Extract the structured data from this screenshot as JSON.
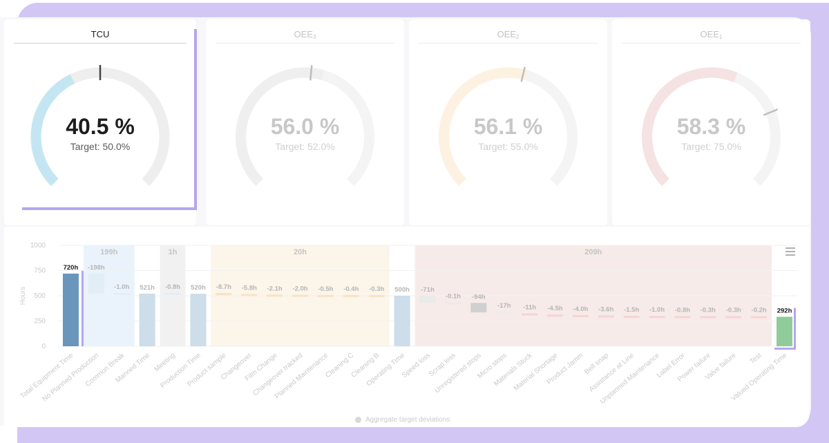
{
  "gauges": [
    {
      "title": "TCU",
      "sub": "",
      "value": "40.5 %",
      "target": "Target: 50.0%",
      "fraction": 0.405,
      "target_fraction": 0.5,
      "color": "#c4e6f3",
      "active": true
    },
    {
      "title": "OEE",
      "sub": "3",
      "value": "56.0 %",
      "target": "Target: 52.0%",
      "fraction": 0.56,
      "target_fraction": 0.52,
      "color": "#efefef",
      "active": false
    },
    {
      "title": "OEE",
      "sub": "2",
      "value": "56.1 %",
      "target": "Target: 55.0%",
      "fraction": 0.561,
      "target_fraction": 0.55,
      "color": "#fdf2e1",
      "active": false
    },
    {
      "title": "OEE",
      "sub": "1",
      "value": "58.3 %",
      "target": "Target: 75.0%",
      "fraction": 0.583,
      "target_fraction": 0.75,
      "color": "#f5e2e2",
      "active": false
    }
  ],
  "chart_data": {
    "type": "bar",
    "ylabel": "Hours",
    "ylim": [
      0,
      1000
    ],
    "yticks": [
      0,
      250,
      500,
      750,
      1000
    ],
    "categories": [
      "Total Equipment Time",
      "No Planned Production",
      "Common Break",
      "Manned Time",
      "Meeting",
      "Production Time",
      "Product sample",
      "Changeover",
      "Film Change",
      "Changeover tracked",
      "Planned Maintenance",
      "Cleaning C",
      "Cleaning B",
      "Operating Time",
      "Speed loss",
      "Scrap loss",
      "Unregistered stops",
      "Micro stops",
      "Materials Stuck",
      "Material Shortage",
      "Product Jamm",
      "Belt snap",
      "Assistance at Line",
      "Unplanned Maintenance",
      "Label Error",
      "Power failure",
      "Valve failure",
      "Test",
      "Valued Operating Time"
    ],
    "labels": [
      "720h",
      "-198h",
      "-1.0h",
      "521h",
      "-0.8h",
      "520h",
      "-8.7h",
      "-5.8h",
      "-2.1h",
      "-2.0h",
      "-0.5h",
      "-0.4h",
      "-0.3h",
      "500h",
      "-71h",
      "-0.1h",
      "-94h",
      "-17h",
      "-11h",
      "-4.5h",
      "-4.0h",
      "-3.6h",
      "-1.5h",
      "-1.0h",
      "-0.8h",
      "-0.3h",
      "-0.3h",
      "-0.2h",
      "292h"
    ],
    "bars": [
      {
        "kind": "total",
        "low": 0,
        "high": 720
      },
      {
        "kind": "loss",
        "low": 522,
        "high": 720
      },
      {
        "kind": "loss",
        "low": 521,
        "high": 522
      },
      {
        "kind": "total",
        "low": 0,
        "high": 521
      },
      {
        "kind": "loss",
        "low": 520,
        "high": 521
      },
      {
        "kind": "total",
        "low": 0,
        "high": 520
      },
      {
        "kind": "loss",
        "low": 511,
        "high": 520
      },
      {
        "kind": "loss",
        "low": 505,
        "high": 511
      },
      {
        "kind": "loss",
        "low": 503,
        "high": 505
      },
      {
        "kind": "loss",
        "low": 501,
        "high": 503
      },
      {
        "kind": "loss",
        "low": 501,
        "high": 501.5
      },
      {
        "kind": "loss",
        "low": 500.5,
        "high": 501
      },
      {
        "kind": "loss",
        "low": 500,
        "high": 500.5
      },
      {
        "kind": "total",
        "low": 0,
        "high": 500
      },
      {
        "kind": "loss",
        "low": 429,
        "high": 500
      },
      {
        "kind": "loss",
        "low": 428.9,
        "high": 429
      },
      {
        "kind": "loss",
        "low": 335,
        "high": 429
      },
      {
        "kind": "loss",
        "low": 318,
        "high": 335
      },
      {
        "kind": "loss",
        "low": 307,
        "high": 318
      },
      {
        "kind": "loss",
        "low": 302.5,
        "high": 307
      },
      {
        "kind": "loss",
        "low": 298.5,
        "high": 302.5
      },
      {
        "kind": "loss",
        "low": 295,
        "high": 298.5
      },
      {
        "kind": "loss",
        "low": 293.5,
        "high": 295
      },
      {
        "kind": "loss",
        "low": 292.5,
        "high": 293.5
      },
      {
        "kind": "loss",
        "low": 291.7,
        "high": 292.5
      },
      {
        "kind": "loss",
        "low": 291.4,
        "high": 291.7
      },
      {
        "kind": "loss",
        "low": 291.1,
        "high": 291.4
      },
      {
        "kind": "loss",
        "low": 290.9,
        "high": 291.1
      },
      {
        "kind": "total",
        "low": 0,
        "high": 292
      }
    ],
    "groups": [
      {
        "label": "199h",
        "from": 1,
        "to": 2,
        "color": "#eaf3fc"
      },
      {
        "label": "1h",
        "from": 4,
        "to": 4,
        "color": "#f1f1f1"
      },
      {
        "label": "20h",
        "from": 6,
        "to": 12,
        "color": "#fbf5ea"
      },
      {
        "label": "209h",
        "from": 14,
        "to": 27,
        "color": "#f6ebe8"
      }
    ],
    "colors": {
      "total_active": "#6a96bb",
      "total_muted": "#cddde9",
      "final": "#8fcc9a",
      "loss_blue": "#e3edf8",
      "loss_orange": "#f8e3c4",
      "loss_grey_dark": "#d0d0d0",
      "loss_pink": "#f6d3d5"
    },
    "legend": "Aggregate target deviations"
  }
}
